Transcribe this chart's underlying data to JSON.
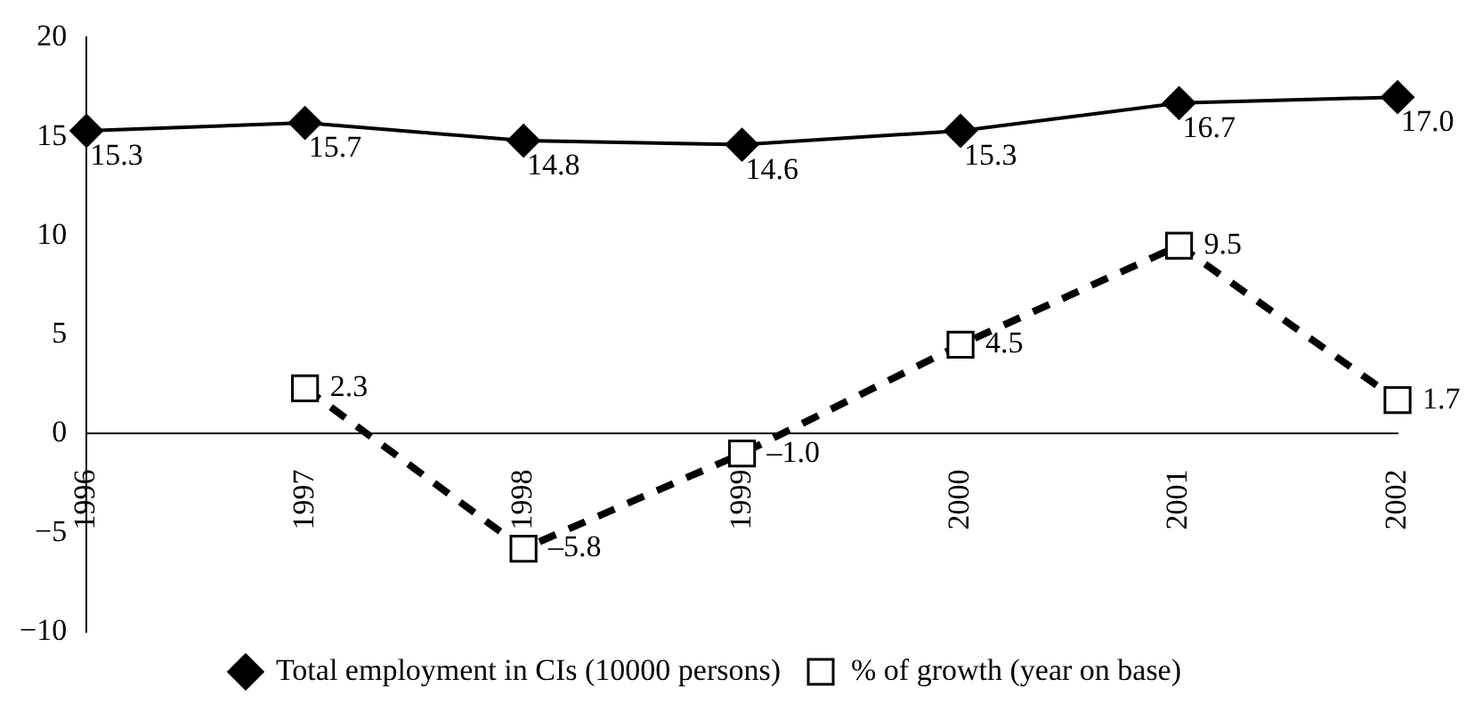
{
  "chart_data": {
    "type": "line",
    "categories": [
      "1996",
      "1997",
      "1998",
      "1999",
      "2000",
      "2001",
      "2002"
    ],
    "series": [
      {
        "name": "Total employment in CIs (10000 persons)",
        "color": "#000000",
        "marker": "diamond",
        "line_style": "solid",
        "values": [
          15.3,
          15.7,
          14.8,
          14.6,
          15.3,
          16.7,
          17.0
        ],
        "value_labels": [
          "15.3",
          "15.7",
          "14.8",
          "14.6",
          "15.3",
          "16.7",
          "17.0"
        ]
      },
      {
        "name": "% of growth (year on base)",
        "color": "#000000",
        "marker": "square",
        "line_style": "dashed",
        "values": [
          null,
          2.3,
          -5.8,
          -1.0,
          4.5,
          9.5,
          1.7
        ],
        "value_labels": [
          null,
          "2.3",
          "–5.8",
          "–1.0",
          "4.5",
          "9.5",
          "1.7"
        ]
      }
    ],
    "ylim": [
      -10,
      20
    ],
    "yticks": [
      {
        "value": -10,
        "label": "−10"
      },
      {
        "value": -5,
        "label": "−5"
      },
      0,
      5,
      10,
      15,
      20
    ],
    "grid": false,
    "legend": "bottom"
  }
}
